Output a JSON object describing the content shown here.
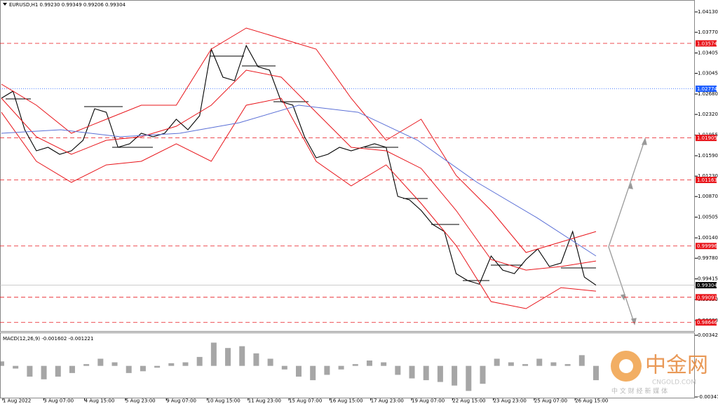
{
  "header": "EURUSD,H1  0.99230 0.99349 0.99206 0.99304",
  "chart_data": [
    {
      "type": "line",
      "ylim": [
        0.98494,
        1.04291
      ],
      "yticks": [
        {
          "value": 1.0413,
          "label": "1.04130"
        },
        {
          "value": 1.0377,
          "label": "1.03770"
        },
        {
          "value": 1.03405,
          "label": "1.03405"
        },
        {
          "value": 1.03045,
          "label": "1.03045"
        },
        {
          "value": 1.0268,
          "label": "1.02680"
        },
        {
          "value": 1.0232,
          "label": "1.02320"
        },
        {
          "value": 1.01955,
          "label": "1.01955"
        },
        {
          "value": 1.0159,
          "label": "1.01590"
        },
        {
          "value": 1.0123,
          "label": "1.01230"
        },
        {
          "value": 1.0087,
          "label": "1.00870"
        },
        {
          "value": 1.00505,
          "label": "1.00505"
        },
        {
          "value": 1.0014,
          "label": "1.00140"
        },
        {
          "value": 0.9978,
          "label": "0.99780"
        },
        {
          "value": 0.99415,
          "label": "0.99415"
        },
        {
          "value": 0.9905,
          "label": "0.99050"
        },
        {
          "value": 0.9868,
          "label": "0.98680"
        }
      ],
      "x_labels": [
        "1 Aug 2022",
        "3 Aug 07:00",
        "4 Aug 15:00",
        "5 Aug 23:00",
        "9 Aug 07:00",
        "10 Aug 15:00",
        "11 Aug 23:00",
        "15 Aug 07:00",
        "16 Aug 15:00",
        "17 Aug 23:00",
        "19 Aug 07:00",
        "22 Aug 15:00",
        "23 Aug 23:00",
        "25 Aug 07:00",
        "26 Aug 15:00"
      ],
      "series": [
        {
          "color": "#000000",
          "values": [
            1.02606,
            1.0273,
            1.02049,
            1.01677,
            1.01739,
            1.01615,
            1.01677,
            1.01863,
            1.0242,
            1.02358,
            1.01739,
            1.01801,
            1.01987,
            1.01925,
            1.01987,
            1.02235,
            1.02049,
            1.02297,
            1.03473,
            1.02978,
            1.02916,
            1.03535,
            1.03164,
            1.03102,
            1.02544,
            1.02482,
            1.01925,
            1.01553,
            1.01615,
            1.01739,
            1.01677,
            1.01739,
            1.01801,
            1.01739,
            1.00872,
            1.0081,
            1.00624,
            1.00376,
            1.00252,
            0.99509,
            0.99385,
            0.99323,
            0.99819,
            0.99571,
            0.99509,
            0.99757,
            0.99943,
            0.99633,
            0.99695,
            1.00252,
            0.99447,
            0.99304
          ]
        },
        {
          "color": "#e8141a",
          "values": [
            1.02854,
            1.02482,
            1.01987,
            1.02235,
            1.02482,
            1.02482,
            1.03473,
            1.03845,
            1.03659,
            1.03473,
            1.02606,
            1.01863,
            1.02235,
            1.01243,
            1.00624,
            0.99881,
            1.00067,
            1.00252
          ]
        },
        {
          "color": "#e8141a",
          "values": [
            1.02606,
            1.01925,
            1.01615,
            1.01863,
            1.01925,
            1.02111,
            1.02482,
            1.03102,
            1.02978,
            1.02358,
            1.01739,
            1.01677,
            1.01367,
            1.00624,
            0.99757,
            0.99571,
            0.99633,
            0.99732
          ]
        },
        {
          "color": "#e8141a",
          "values": [
            1.02358,
            1.01491,
            1.0112,
            1.01429,
            1.01491,
            1.01801,
            1.01491,
            1.02482,
            1.02606,
            1.01491,
            1.01058,
            1.01429,
            1.00748,
            1.00005,
            0.99014,
            0.9889,
            0.99261,
            0.99199
          ]
        },
        {
          "color": "#5a6fd6",
          "values": [
            1.01987,
            1.02049,
            1.01925,
            1.01987,
            1.02173,
            1.02482,
            1.02358,
            1.01863,
            1.0112,
            1.005,
            0.99819
          ]
        }
      ],
      "levels": [
        {
          "value": 1.03574,
          "color": "#e8141a"
        },
        {
          "value": 1.02774,
          "color": "#1f5fff"
        },
        {
          "value": 1.01905,
          "color": "#e8141a"
        },
        {
          "value": 1.01163,
          "color": "#e8141a"
        },
        {
          "value": 0.99996,
          "color": "#e8141a"
        },
        {
          "value": 0.99304,
          "color": "#000000"
        },
        {
          "value": 0.99091,
          "color": "#e8141a"
        },
        {
          "value": 0.98646,
          "color": "#e8141a"
        }
      ]
    },
    {
      "type": "bar",
      "title": "MACD(12,26,9) -0.001602 -0.001221",
      "color": "#808080",
      "ylim": [
        -0.003478,
        0.003424
      ],
      "yticks": [
        0.003424,
        -0.003478
      ],
      "values": [
        0.0005,
        -0.0003,
        -0.0012,
        -0.0015,
        -0.0012,
        -0.0008,
        0.0002,
        0.0008,
        0.0004,
        -0.0008,
        -0.0006,
        -0.0002,
        0.0003,
        0.0004,
        0.001,
        0.0026,
        0.002,
        0.0022,
        0.0014,
        0.0008,
        -0.0004,
        -0.0012,
        -0.0016,
        -0.001,
        -0.0004,
        0.0002,
        0.0006,
        0.0004,
        -0.001,
        -0.0014,
        -0.0016,
        -0.0018,
        -0.0022,
        -0.0028,
        -0.002,
        0.0008,
        0.0004,
        0.0002,
        0.0008,
        0.0004,
        0.0002,
        0.0012,
        -0.0016
      ]
    }
  ],
  "watermark": {
    "name": "中金网",
    "site": "CNGOLD.COM",
    "tagline": "中 文 财 经 新 媒 体"
  }
}
